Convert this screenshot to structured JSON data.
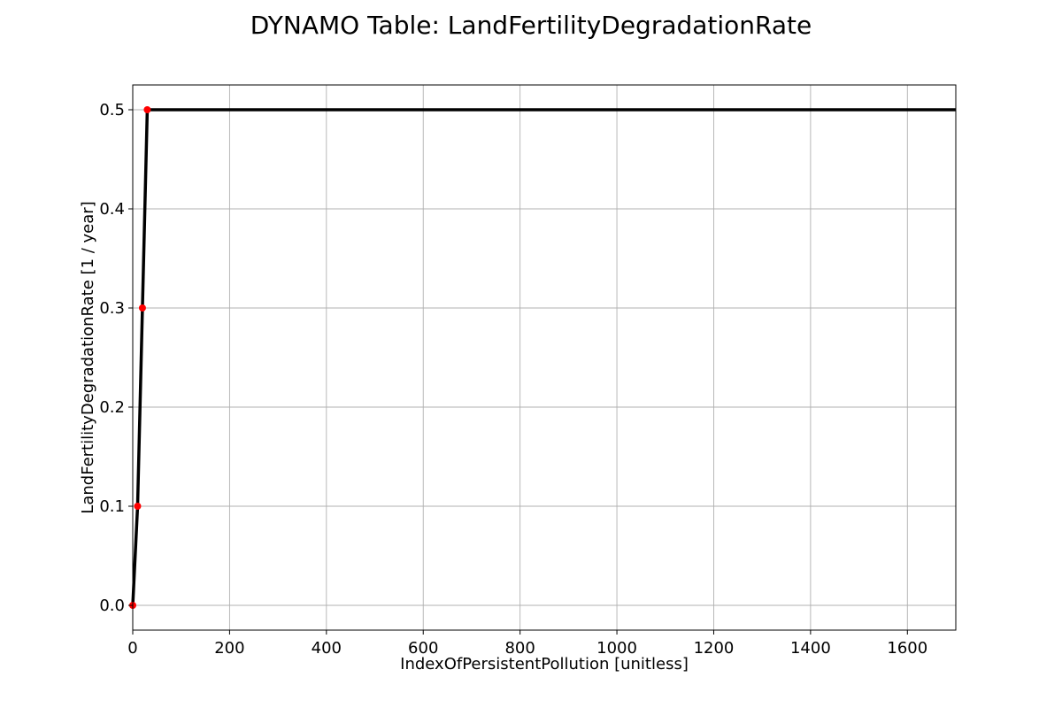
{
  "chart_data": {
    "type": "line",
    "title": "DYNAMO Table: LandFertilityDegradationRate",
    "xlabel": "IndexOfPersistentPollution [unitless]",
    "ylabel": "LandFertilityDegradationRate [1 / year]",
    "xlim": [
      0,
      1700
    ],
    "ylim": [
      -0.025,
      0.525
    ],
    "x_ticks": [
      0,
      200,
      400,
      600,
      800,
      1000,
      1200,
      1400,
      1600
    ],
    "x_tick_labels": [
      "0",
      "200",
      "400",
      "600",
      "800",
      "1000",
      "1200",
      "1400",
      "1600"
    ],
    "y_ticks": [
      0.0,
      0.1,
      0.2,
      0.3,
      0.4,
      0.5
    ],
    "y_tick_labels": [
      "0.0",
      "0.1",
      "0.2",
      "0.3",
      "0.4",
      "0.5"
    ],
    "grid": true,
    "series": [
      {
        "color": "#000000",
        "x": [
          0,
          10,
          20,
          30,
          1700
        ],
        "y": [
          0.0,
          0.1,
          0.3,
          0.5,
          0.5
        ]
      }
    ],
    "points": {
      "color": "#ff0000",
      "x": [
        0,
        10,
        20,
        30
      ],
      "y": [
        0.0,
        0.1,
        0.3,
        0.5
      ]
    }
  }
}
